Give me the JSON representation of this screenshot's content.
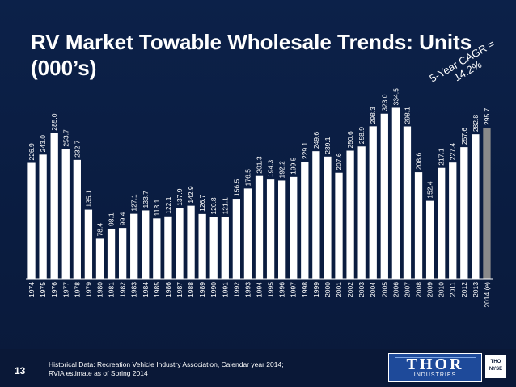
{
  "page": {
    "title": "RV Market Towable Wholesale Trends: Units\n(000’s)",
    "cagr_note": "5-Year CAGR =\n14.2%",
    "page_number": "13",
    "footnote": "Historical Data: Recreation Vehicle Industry Association, Calendar year 2014; RVIA estimate as of Spring 2014",
    "logo_text": "THOR",
    "logo_subtext": "INDUSTRIES",
    "nyse_badge": "THO\nNYSE"
  },
  "colors": {
    "background": "#0b1f45",
    "bar": "#ffffff",
    "estimate_bar": "#8a8a8a",
    "text": "#ffffff"
  },
  "chart_data": {
    "type": "bar",
    "title": "RV Market Towable Wholesale Trends: Units (000’s)",
    "xlabel": "",
    "ylabel": "Units (000’s)",
    "ylim": [
      0,
      340
    ],
    "grid": false,
    "categories": [
      "1974",
      "1975",
      "1976",
      "1977",
      "1978",
      "1979",
      "1980",
      "1981",
      "1982",
      "1983",
      "1984",
      "1985",
      "1986",
      "1987",
      "1988",
      "1989",
      "1990",
      "1991",
      "1992",
      "1993",
      "1994",
      "1995",
      "1996",
      "1997",
      "1998",
      "1999",
      "2000",
      "2001",
      "2002",
      "2003",
      "2004",
      "2005",
      "2006",
      "2007",
      "2008",
      "2009",
      "2010",
      "2011",
      "2012",
      "2013",
      "2014 (e)"
    ],
    "values": [
      226.9,
      243.0,
      285.0,
      253.7,
      232.7,
      135.1,
      78.4,
      98.1,
      99.4,
      127.1,
      133.7,
      118.1,
      122.1,
      137.9,
      142.9,
      126.7,
      120.8,
      121.1,
      156.5,
      176.5,
      201.3,
      194.3,
      192.2,
      199.5,
      229.1,
      249.6,
      239.1,
      207.6,
      250.6,
      258.9,
      298.3,
      323.0,
      334.5,
      298.1,
      208.6,
      152.4,
      217.1,
      227.4,
      257.6,
      282.8,
      295.7
    ],
    "value_labels": [
      "226.9",
      "243.0",
      "285.0",
      "253.7",
      "232.7",
      "135.1",
      "78.4",
      "98.1",
      "99.4",
      "127.1",
      "133.7",
      "118.1",
      "122.1",
      "137.9",
      "142.9",
      "126.7",
      "120.8",
      "121.1",
      "156.5",
      "176.5",
      "201.3",
      "194.3",
      "192.2",
      "199.5",
      "229.1",
      "249.6",
      "239.1",
      "207.6",
      "250.6",
      "258.9",
      "298.3",
      "323.0",
      "334.5",
      "298.1",
      "208.6",
      "152.4",
      "217.1",
      "227.4",
      "257.6",
      "282.8",
      "295.7"
    ],
    "estimate_index": 40,
    "annotation": "5-Year CAGR = 14.2%"
  }
}
